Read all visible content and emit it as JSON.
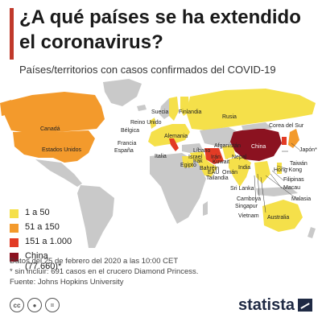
{
  "title": "¿A qué países se ha extendido el coronavirus?",
  "subtitle": "Países/territorios con casos confirmados del COVID-19",
  "colors": {
    "accent": "#c0392b",
    "none": "#c9c9c9",
    "c1_50": "#f5e04a",
    "c51_150": "#f39a2c",
    "c151_1000": "#e23b25",
    "china": "#8b1220"
  },
  "legend": {
    "items": [
      {
        "label": "1 a 50"
      },
      {
        "label": "51 a 150"
      },
      {
        "label": "151 a 1.000"
      },
      {
        "label": "China",
        "sublabel": "(77.660)*"
      }
    ]
  },
  "country_labels": {
    "canada": "Canadá",
    "usa": "Estados Unidos",
    "suecia": "Suecia",
    "finlandia": "Finlandia",
    "reino_unido": "Reino Unido",
    "belgica": "Bélgica",
    "alemania": "Alemania",
    "francia": "Francia",
    "espana": "España",
    "italia": "Italia",
    "rusia": "Rusia",
    "libano": "Líbano",
    "israel": "Israel",
    "egipto": "Egipto",
    "irak": "Irak",
    "bahrein": "Bahréin",
    "iran": "Irán",
    "kuwait": "Kuwait",
    "afganistan": "Afganistán",
    "nepal": "Nepal",
    "eau": "EAU",
    "oman": "Omán",
    "india": "India",
    "tailandia": "Tailandia",
    "sri_lanka": "Sri Lanka",
    "camboya": "Camboya",
    "singapur": "Singapur",
    "vietnam": "Vietnam",
    "china": "China",
    "corea": "Corea del Sur",
    "japon": "Japón*",
    "taiwan": "Taiwán",
    "hong_kong": "Hong Kong",
    "filipinas": "Filipinas",
    "macau": "Macau",
    "malasia": "Malasia",
    "australia": "Australia"
  },
  "notes": {
    "date": "Datos del 25 de febrero del 2020 a las 10:00 CET",
    "footnote": "* sin incluir: 691 casos en el crucero Diamond Princess.",
    "source": "Fuente: Johns Hopkins University"
  },
  "footer": {
    "icons": [
      "cc-icon",
      "attribution-icon",
      "no-derivatives-icon"
    ],
    "brand": "statista"
  }
}
